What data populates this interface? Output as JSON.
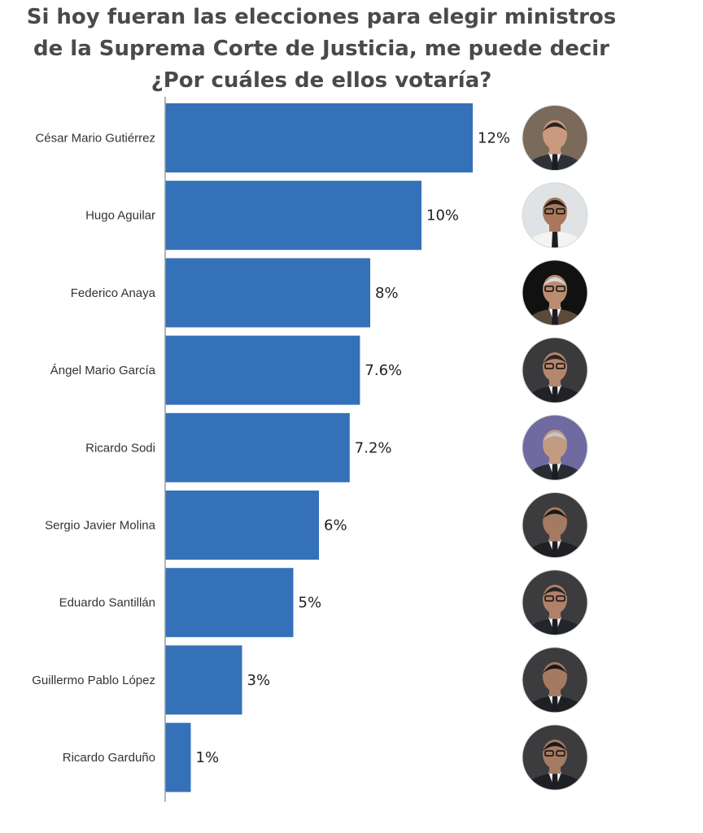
{
  "chart_data": {
    "type": "bar",
    "orientation": "horizontal",
    "title_lines": [
      "Si hoy fueran las elecciones para elegir ministros",
      "de la Suprema Corte de Justicia, me puede decir",
      "¿Por cuáles de ellos votaría?"
    ],
    "categories": [
      "César Mario Gutiérrez",
      "Hugo Aguilar",
      "Federico Anaya",
      "Ángel Mario García",
      "Ricardo Sodi",
      "Sergio Javier Molina",
      "Eduardo Santillán",
      "Guillermo Pablo López",
      "Ricardo Garduño"
    ],
    "values": [
      12,
      10,
      8,
      7.6,
      7.2,
      6,
      5,
      3,
      1
    ],
    "value_labels": [
      "12%",
      "10%",
      "8%",
      "7.6%",
      "7.2%",
      "6%",
      "5%",
      "3%",
      "1%"
    ],
    "unit": "%",
    "xlim": [
      0,
      12
    ],
    "grid": false,
    "legend": "none",
    "bar_color": "#3471b8",
    "photos": [
      "candidate-photo-cesar-mario-gutierrez",
      "candidate-photo-hugo-aguilar",
      "candidate-photo-federico-anaya",
      "candidate-photo-angel-mario-garcia",
      "candidate-photo-ricardo-sodi",
      "candidate-photo-sergio-javier-molina",
      "candidate-photo-eduardo-santillan",
      "candidate-photo-guillermo-pablo-lopez",
      "candidate-photo-ricardo-garduno"
    ]
  }
}
